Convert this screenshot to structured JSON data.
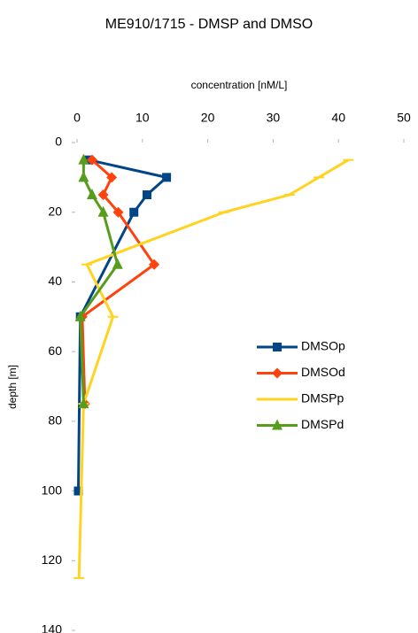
{
  "chart_data": {
    "type": "line",
    "title": "ME910/1715 - DMSP and DMSO",
    "x_label": "concentration [nM/L]",
    "y_label": "depth [m]",
    "xlim": [
      0,
      50
    ],
    "xticks": [
      0,
      10,
      20,
      30,
      40,
      50
    ],
    "ylim": [
      0,
      140
    ],
    "yticks": [
      0,
      20,
      40,
      60,
      80,
      100,
      120,
      140
    ],
    "y_inverted": true,
    "legend": "right",
    "series": [
      {
        "name": "DMSOp",
        "color": "#004586",
        "marker": "square",
        "depths": [
          5,
          10,
          15,
          20,
          50,
          100
        ],
        "values": [
          1.8,
          13.7,
          10.7,
          8.7,
          0.5,
          0.2
        ]
      },
      {
        "name": "DMSOd",
        "color": "#ff420e",
        "marker": "diamond",
        "depths": [
          5,
          10,
          15,
          20,
          35,
          50,
          75
        ],
        "values": [
          2.3,
          5.3,
          4,
          6.3,
          11.8,
          0.8,
          1.2
        ]
      },
      {
        "name": "DMSPp",
        "color": "#ffd320",
        "marker": "dash",
        "depths": [
          5,
          10,
          15,
          20,
          35,
          50,
          75,
          125
        ],
        "values": [
          41.5,
          37,
          32.5,
          22.5,
          1.5,
          5.5,
          1,
          0.3
        ]
      },
      {
        "name": "DMSPd",
        "color": "#579d1c",
        "marker": "triangle",
        "depths": [
          5,
          10,
          15,
          20,
          35,
          50,
          75
        ],
        "values": [
          1,
          1,
          2.3,
          4,
          6.2,
          0.5,
          1
        ]
      }
    ]
  }
}
